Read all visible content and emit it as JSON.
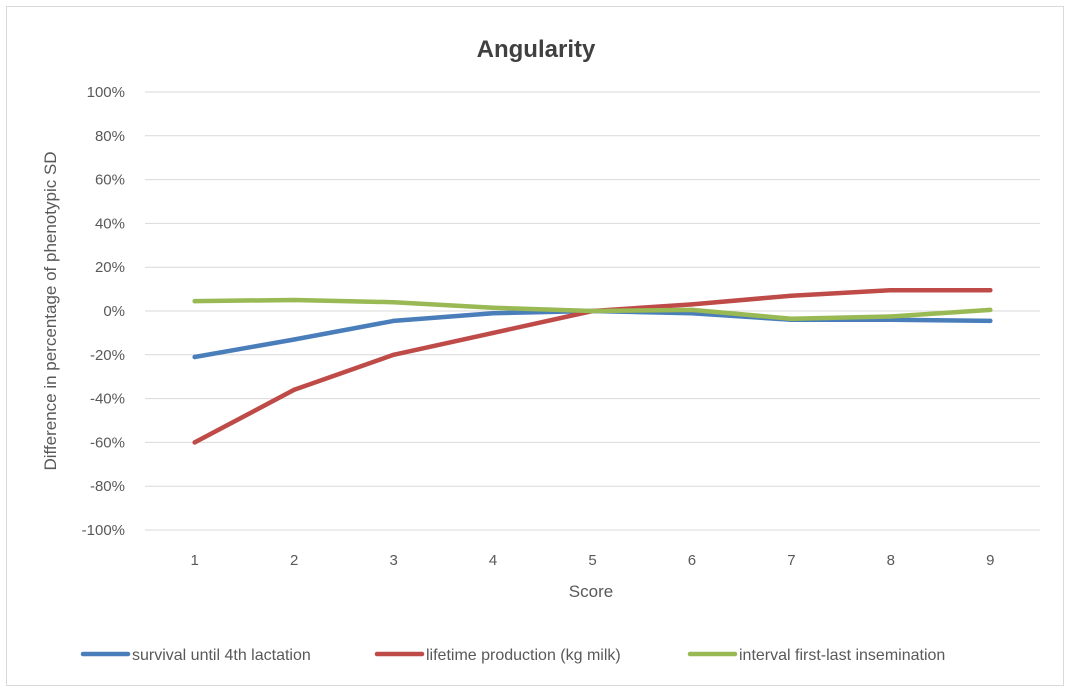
{
  "chart_data": {
    "type": "line",
    "title": "Angularity",
    "xlabel": "Score",
    "ylabel": "Difference in percentage of phenotypic SD",
    "categories": [
      "1",
      "2",
      "3",
      "4",
      "5",
      "6",
      "7",
      "8",
      "9"
    ],
    "ylim": [
      -100,
      100
    ],
    "yticks": [
      100,
      80,
      60,
      40,
      20,
      0,
      -20,
      -40,
      -60,
      -80,
      -100
    ],
    "ytick_labels": [
      "100%",
      "80%",
      "60%",
      "40%",
      "20%",
      "0%",
      "-20%",
      "-40%",
      "-60%",
      "-80%",
      "-100%"
    ],
    "grid": true,
    "legend_position": "bottom",
    "series": [
      {
        "name": "survival until 4th lactation",
        "color": "#4a7ebb",
        "values": [
          -21,
          -13,
          -4.5,
          -1,
          0,
          -1,
          -4,
          -4,
          -4.5
        ]
      },
      {
        "name": "lifetime production (kg milk)",
        "color": "#be4b48",
        "values": [
          -60,
          -36,
          -20,
          -10,
          0,
          3,
          7,
          9.5,
          9.5
        ]
      },
      {
        "name": "interval first-last insemination",
        "color": "#98b954",
        "values": [
          4.5,
          5,
          4,
          1.5,
          0,
          0.5,
          -3.5,
          -2.5,
          0.5
        ]
      }
    ]
  }
}
